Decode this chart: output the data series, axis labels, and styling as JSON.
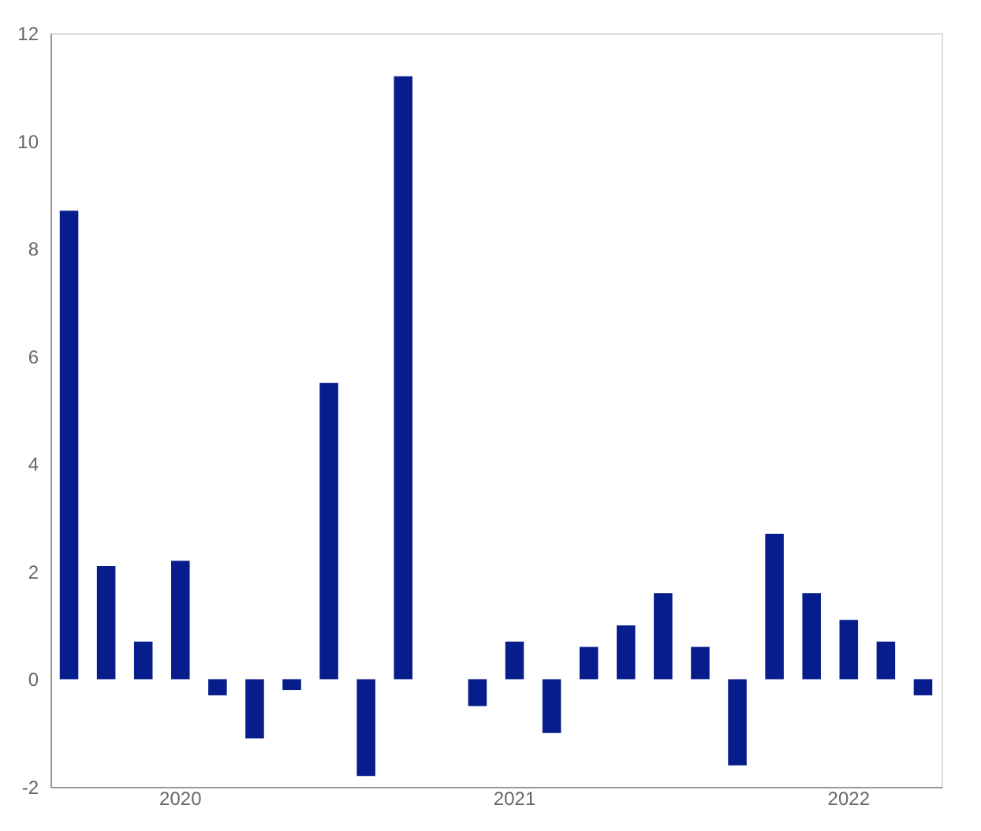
{
  "chart_data": {
    "type": "bar",
    "categories": [
      null,
      null,
      null,
      "2020",
      null,
      null,
      null,
      null,
      null,
      null,
      null,
      null,
      "2021",
      null,
      null,
      null,
      null,
      null,
      null,
      null,
      null,
      "2022",
      null,
      null
    ],
    "values": [
      8.7,
      2.1,
      0.7,
      2.2,
      -0.3,
      -1.1,
      -0.2,
      5.5,
      -1.8,
      11.2,
      null,
      -0.5,
      0.7,
      -1.0,
      0.6,
      1.0,
      1.6,
      0.6,
      -1.6,
      2.7,
      1.6,
      1.1,
      0.7,
      -0.3
    ],
    "color": "#081d8c",
    "ylim": [
      -2,
      12
    ],
    "yticks": [
      -2,
      0,
      2,
      4,
      6,
      8,
      10,
      12
    ],
    "grid": false
  }
}
